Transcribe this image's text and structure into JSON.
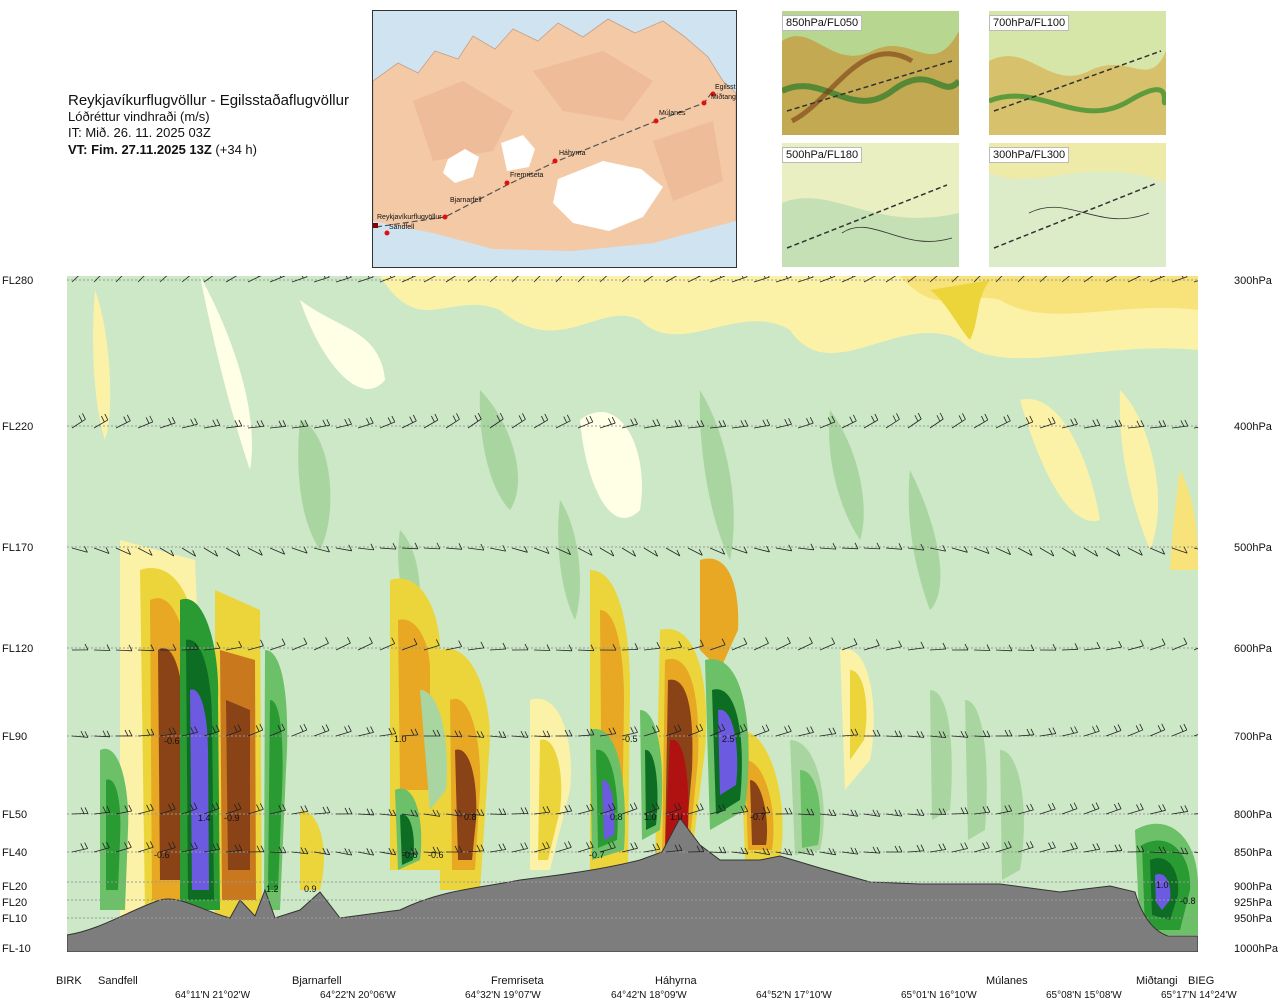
{
  "header": {
    "route": "Reykjavíkurflugvöllur - Egilsstaðaflugvöllur",
    "quantity": "Lóðréttur vindhraði (m/s)",
    "init_time": "IT: Mið. 26. 11. 2025 03Z",
    "valid_prefix": "VT: Fim. 27.11.2025 13Z",
    "valid_suffix": " (+34 h)"
  },
  "map": {
    "places": [
      "Reykjavíkurflugvöllur",
      "Sandfell",
      "Bjarnarfell",
      "Fremriseta",
      "Háhyrna",
      "Múlanes",
      "Egilsst",
      "Miðtangi"
    ],
    "colors": {
      "sea": "#cfe3f1",
      "land": "#f3c9a6",
      "glacier": "#ffffff",
      "route": "#555555",
      "point": "#e01010"
    }
  },
  "thumbnails": [
    {
      "label": "850hPa/FL050"
    },
    {
      "label": "700hPa/FL100"
    },
    {
      "label": "500hPa/FL180"
    },
    {
      "label": "300hPa/FL300"
    }
  ],
  "chart_data": {
    "type": "heatmap",
    "title": "Lóðréttur vindhraði (m/s)",
    "y_levels": [
      {
        "fl": "FL280",
        "hpa": "300hPa"
      },
      {
        "fl": "FL220",
        "hpa": "400hPa"
      },
      {
        "fl": "FL170",
        "hpa": "500hPa"
      },
      {
        "fl": "FL120",
        "hpa": "600hPa"
      },
      {
        "fl": "FL90",
        "hpa": "700hPa"
      },
      {
        "fl": "FL50",
        "hpa": "800hPa"
      },
      {
        "fl": "FL40",
        "hpa": "850hPa"
      },
      {
        "fl": "FL20",
        "hpa": "900hPa"
      },
      {
        "fl": "FL20",
        "hpa": "925hPa"
      },
      {
        "fl": "FL10",
        "hpa": "950hPa"
      },
      {
        "fl": "FL-10",
        "hpa": "1000hPa"
      }
    ],
    "stations": [
      "BIRK",
      "Sandfell",
      "Bjarnarfell",
      "Fremriseta",
      "Háhyrna",
      "Múlanes",
      "Miðtangi",
      "BIEG"
    ],
    "coordinates": [
      "64°11'N 21°02'W",
      "64°22'N 20°06'W",
      "64°32'N 19°07'W",
      "64°42'N 18°09'W",
      "64°52'N 17°10'W",
      "65°01'N 16°10'W",
      "65°08'N 15°08'W",
      "65°17'N 14°24'W"
    ],
    "contour_labels": [
      "-0.6",
      "1.4",
      "-0.9",
      "-0.6",
      "1.0",
      "-0.6",
      "0.8",
      "-0.6",
      "-0.7",
      "0.8",
      "-0.5",
      "1.0",
      "1.0",
      "2.5",
      "-0.7",
      "1.0",
      "-0.8",
      "1.2",
      "0.9"
    ],
    "colors": {
      "up": [
        "#ffffe6",
        "#fbf2a8",
        "#ecd53a",
        "#e8a824",
        "#c9781e",
        "#8a4316",
        "#b01212"
      ],
      "down": [
        "#e6f5e2",
        "#cce8c6",
        "#a9d6a0",
        "#6cc068",
        "#2a9a33",
        "#0d6e23",
        "#6c5ae0"
      ],
      "terrain": "#7d7d7d"
    }
  }
}
